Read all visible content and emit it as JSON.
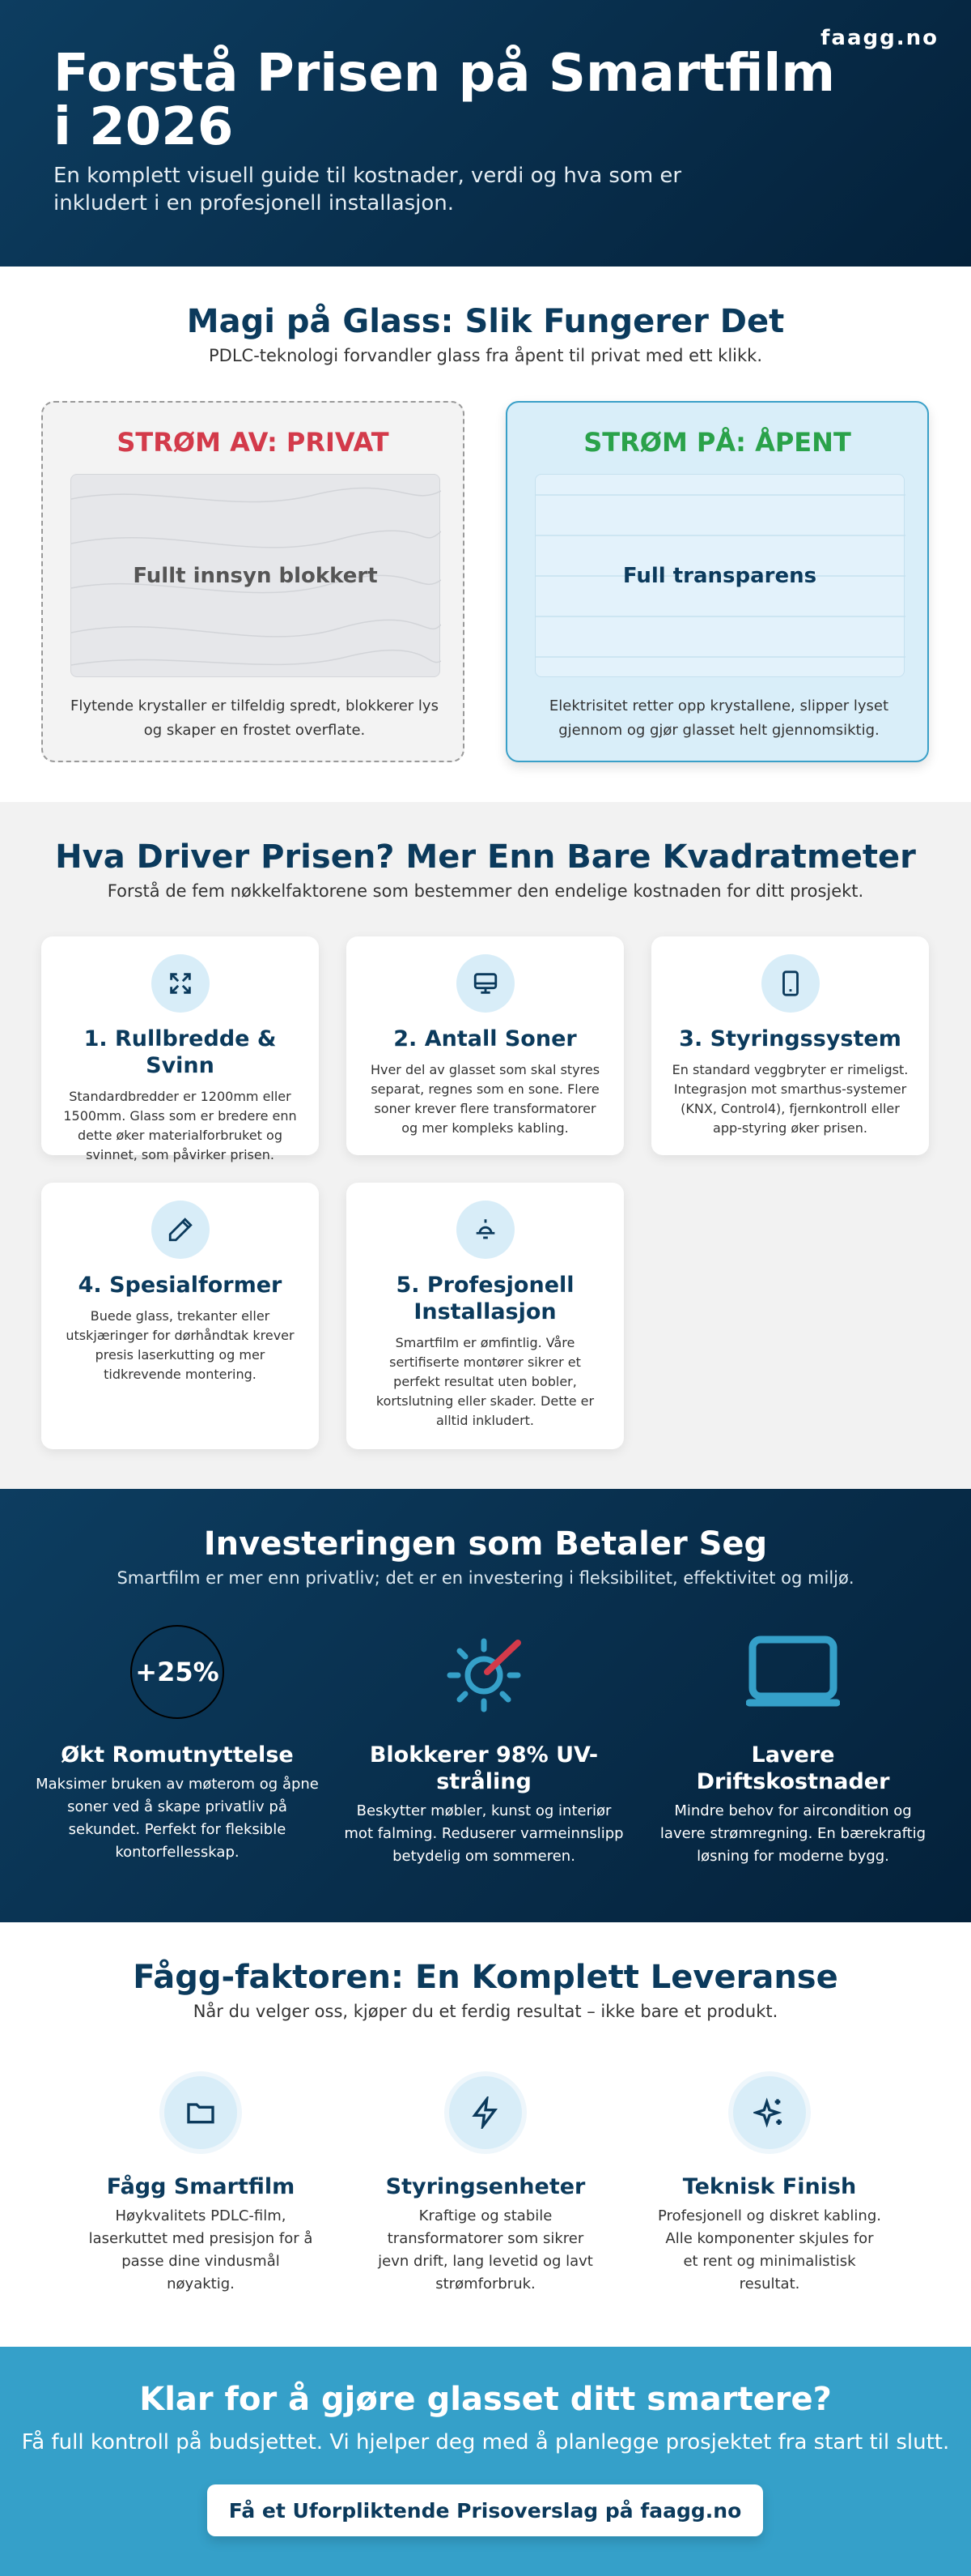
{
  "header": {
    "brand": "faagg.no",
    "title": "Forstå Prisen på Smartfilm i 2026",
    "subtitle": "En komplett visuell guide til kostnader, verdi og hva som er inkludert i en profesjonell installasjon."
  },
  "how_it_works": {
    "title": "Magi på Glass: Slik Fungerer Det",
    "subtitle": "PDLC-teknologi forvandler glass fra åpent til privat med ett klikk.",
    "states": [
      {
        "label": "STRØM AV: PRIVAT",
        "glass_text": "Fullt innsyn blokkert",
        "description": "Flytende krystaller er tilfeldig spredt, blokkerer lys og skaper en frostet overflate."
      },
      {
        "label": "STRØM PÅ: ÅPENT",
        "glass_text": "Full transparens",
        "description": "Elektrisitet retter opp krystallene, slipper lyset gjennom og gjør glasset helt gjennomsiktig."
      }
    ]
  },
  "price_drivers": {
    "title": "Hva Driver Prisen? Mer Enn Bare Kvadratmeter",
    "subtitle": "Forstå de fem nøkkelfaktorene som bestemmer den endelige kostnaden for ditt prosjekt.",
    "factors": [
      {
        "title": "1. Rullbredde & Svinn",
        "text": "Standardbredder er 1200mm eller 1500mm. Glass som er bredere enn dette øker materialforbruket og svinnet, som påvirker prisen."
      },
      {
        "title": "2. Antall Soner",
        "text": "Hver del av glasset som skal styres separat, regnes som en sone. Flere soner krever flere transformatorer og mer kompleks kabling."
      },
      {
        "title": "3. Styringssystem",
        "text": "En standard veggbryter er rimeligst. Integrasjon mot smarthus-systemer (KNX, Control4), fjernkontroll eller app-styring øker prisen."
      },
      {
        "title": "4. Spesialformer",
        "text": "Buede glass, trekanter eller utskjæringer for dørhåndtak krever presis laserkutting og mer tidkrevende montering."
      },
      {
        "title": "5. Profesjonell Installasjon",
        "text": "Smartfilm er ømfintlig. Våre sertifiserte montører sikrer et perfekt resultat uten bobler, kortslutning eller skader. Dette er alltid inkludert."
      }
    ]
  },
  "investment": {
    "title": "Investeringen som Betaler Seg",
    "subtitle": "Smartfilm er mer enn privatliv; det er en investering i fleksibilitet, effektivitet og miljø.",
    "benefits": [
      {
        "stat": "+25%",
        "title": "Økt Romutnyttelse",
        "text": "Maksimer bruken av møterom og åpne soner ved å skape privatliv på sekundet. Perfekt for fleksible kontorfellesskap."
      },
      {
        "title": "Blokkerer 98% UV-stråling",
        "text": "Beskytter møbler, kunst og interiør mot falming. Reduserer varmeinnslipp betydelig om sommeren."
      },
      {
        "title": "Lavere Driftskostnader",
        "text": "Mindre behov for aircondition og lavere strømregning. En bærekraftig løsning for moderne bygg."
      }
    ]
  },
  "delivery": {
    "title": "Fågg-faktoren: En Komplett Leveranse",
    "subtitle": "Når du velger oss, kjøper du et ferdig resultat – ikke bare et produkt.",
    "items": [
      {
        "title": "Fågg Smartfilm",
        "text": "Høykvalitets PDLC-film, laserkuttet med presisjon for å passe dine vindusmål nøyaktig."
      },
      {
        "title": "Styringsenheter",
        "text": "Kraftige og stabile transformatorer som sikrer jevn drift, lang levetid og lavt strømforbruk."
      },
      {
        "title": "Teknisk Finish",
        "text": "Profesjonell og diskret kabling. Alle komponenter skjules for et rent og minimalistisk resultat."
      }
    ]
  },
  "cta": {
    "title": "Klar for å gjøre glasset ditt smartere?",
    "subtitle": "Få full kontroll på budsjettet. Vi hjelper deg med å planlegge prosjektet fra start til slutt.",
    "button": "Få et Uforpliktende Prisoverslag på faagg.no"
  }
}
